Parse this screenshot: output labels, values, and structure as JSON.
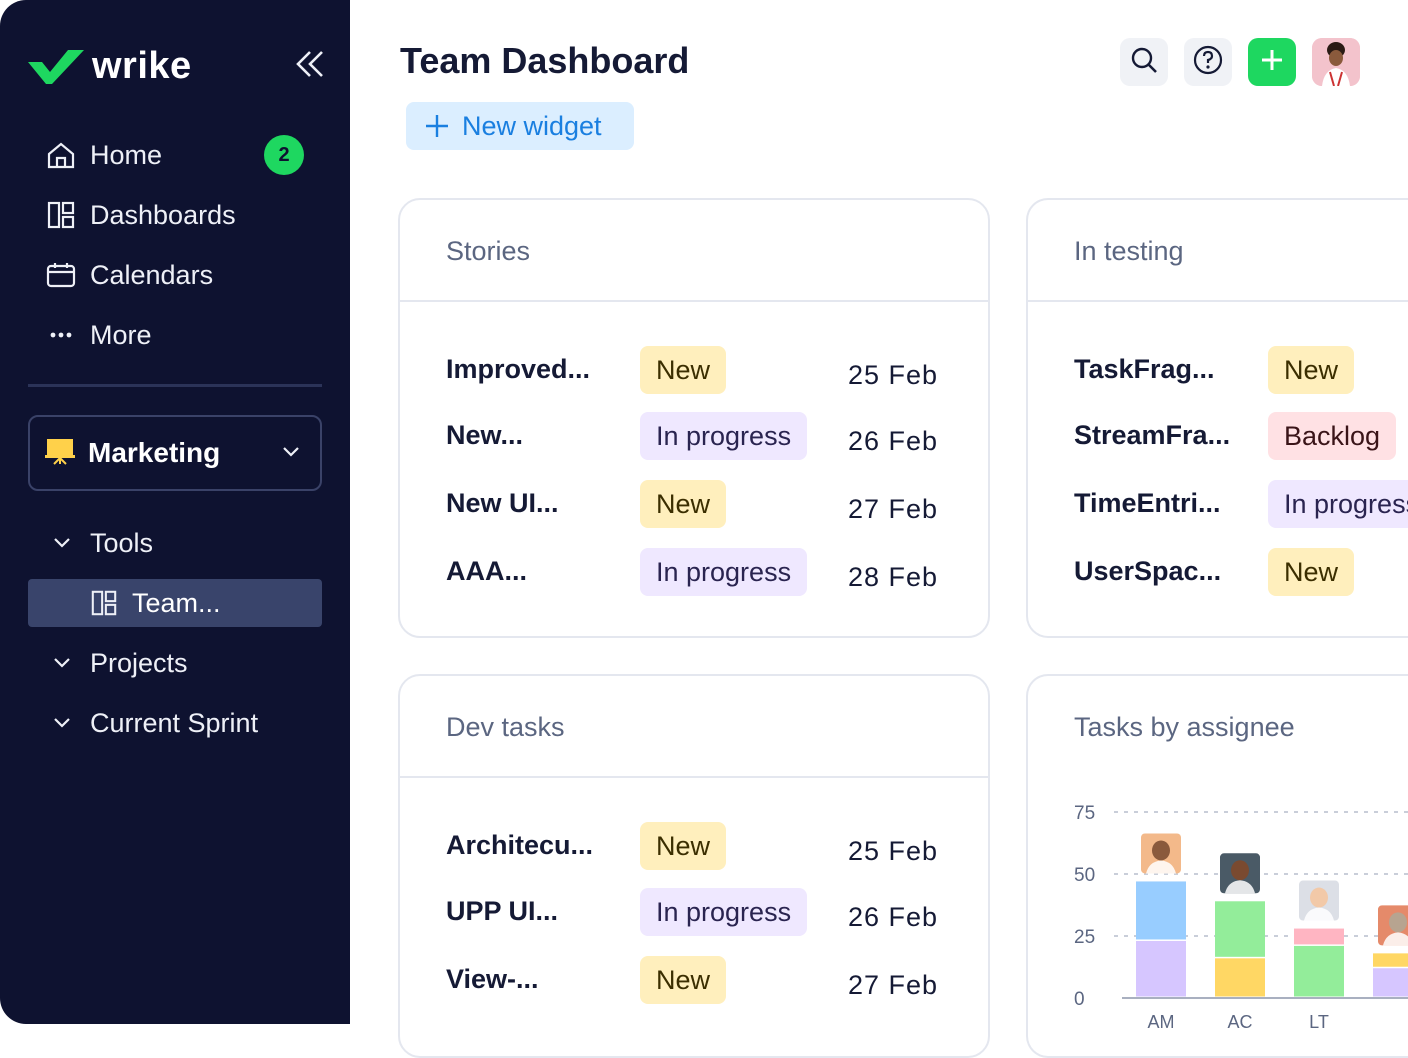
{
  "app": {
    "name": "wrike"
  },
  "sidebar": {
    "notification_count": "2",
    "nav": [
      {
        "label": "Home",
        "icon": "home-icon"
      },
      {
        "label": "Dashboards",
        "icon": "dashboard-icon"
      },
      {
        "label": "Calendars",
        "icon": "calendar-icon"
      },
      {
        "label": "More",
        "icon": "more-icon"
      }
    ],
    "space": {
      "label": "Marketing"
    },
    "tree": [
      {
        "label": "Tools",
        "expanded": true
      },
      {
        "label": "Team...",
        "selected": true
      },
      {
        "label": "Projects"
      },
      {
        "label": "Current Sprint"
      }
    ]
  },
  "header": {
    "title": "Team Dashboard",
    "new_widget_label": "New widget"
  },
  "colors": {
    "brand_green": "#1ed760",
    "sidebar_bg": "#0e1230",
    "accent_blue": "#1a7fe0",
    "status_new": "#ffefbd",
    "status_in_progress": "#efe8ff",
    "status_backlog": "#ffe1e4"
  },
  "widgets": {
    "stories": {
      "title": "Stories",
      "rows": [
        {
          "name": "Improved...",
          "status": "New",
          "date": "25 Feb"
        },
        {
          "name": "New...",
          "status": "In progress",
          "date": "26 Feb"
        },
        {
          "name": "New UI...",
          "status": "New",
          "date": "27 Feb"
        },
        {
          "name": "AAA...",
          "status": "In progress",
          "date": "28 Feb"
        }
      ]
    },
    "in_testing": {
      "title": "In testing",
      "rows": [
        {
          "name": "TaskFrag...",
          "status": "New"
        },
        {
          "name": "StreamFra...",
          "status": "Backlog"
        },
        {
          "name": "TimeEntri...",
          "status": "In progress"
        },
        {
          "name": "UserSpac...",
          "status": "New"
        }
      ]
    },
    "dev_tasks": {
      "title": "Dev tasks",
      "rows": [
        {
          "name": "Architecu...",
          "status": "New",
          "date": "25 Feb"
        },
        {
          "name": "UPP UI...",
          "status": "In progress",
          "date": "26 Feb"
        },
        {
          "name": "View-...",
          "status": "New",
          "date": "27 Feb"
        }
      ]
    },
    "tasks_by_assignee": {
      "title": "Tasks by assignee"
    }
  },
  "chart_data": {
    "type": "bar",
    "stacked": true,
    "title": "Tasks by assignee",
    "y_ticks": [
      "75",
      "50",
      "25",
      "0"
    ],
    "ylim": [
      0,
      75
    ],
    "grid": true,
    "categories": [
      "AM",
      "AC",
      "LT",
      ""
    ],
    "series": [
      {
        "color": "#d6c6ff",
        "values": [
          23,
          0,
          0,
          12
        ]
      },
      {
        "color": "#ffd764",
        "values": [
          0,
          16,
          0,
          6
        ]
      },
      {
        "color": "#93ed9a",
        "values": [
          0,
          23,
          21,
          0
        ]
      },
      {
        "color": "#ffb5c2",
        "values": [
          0,
          0,
          7,
          0
        ]
      },
      {
        "color": "#98cdff",
        "values": [
          24,
          0,
          0,
          0
        ]
      }
    ]
  }
}
